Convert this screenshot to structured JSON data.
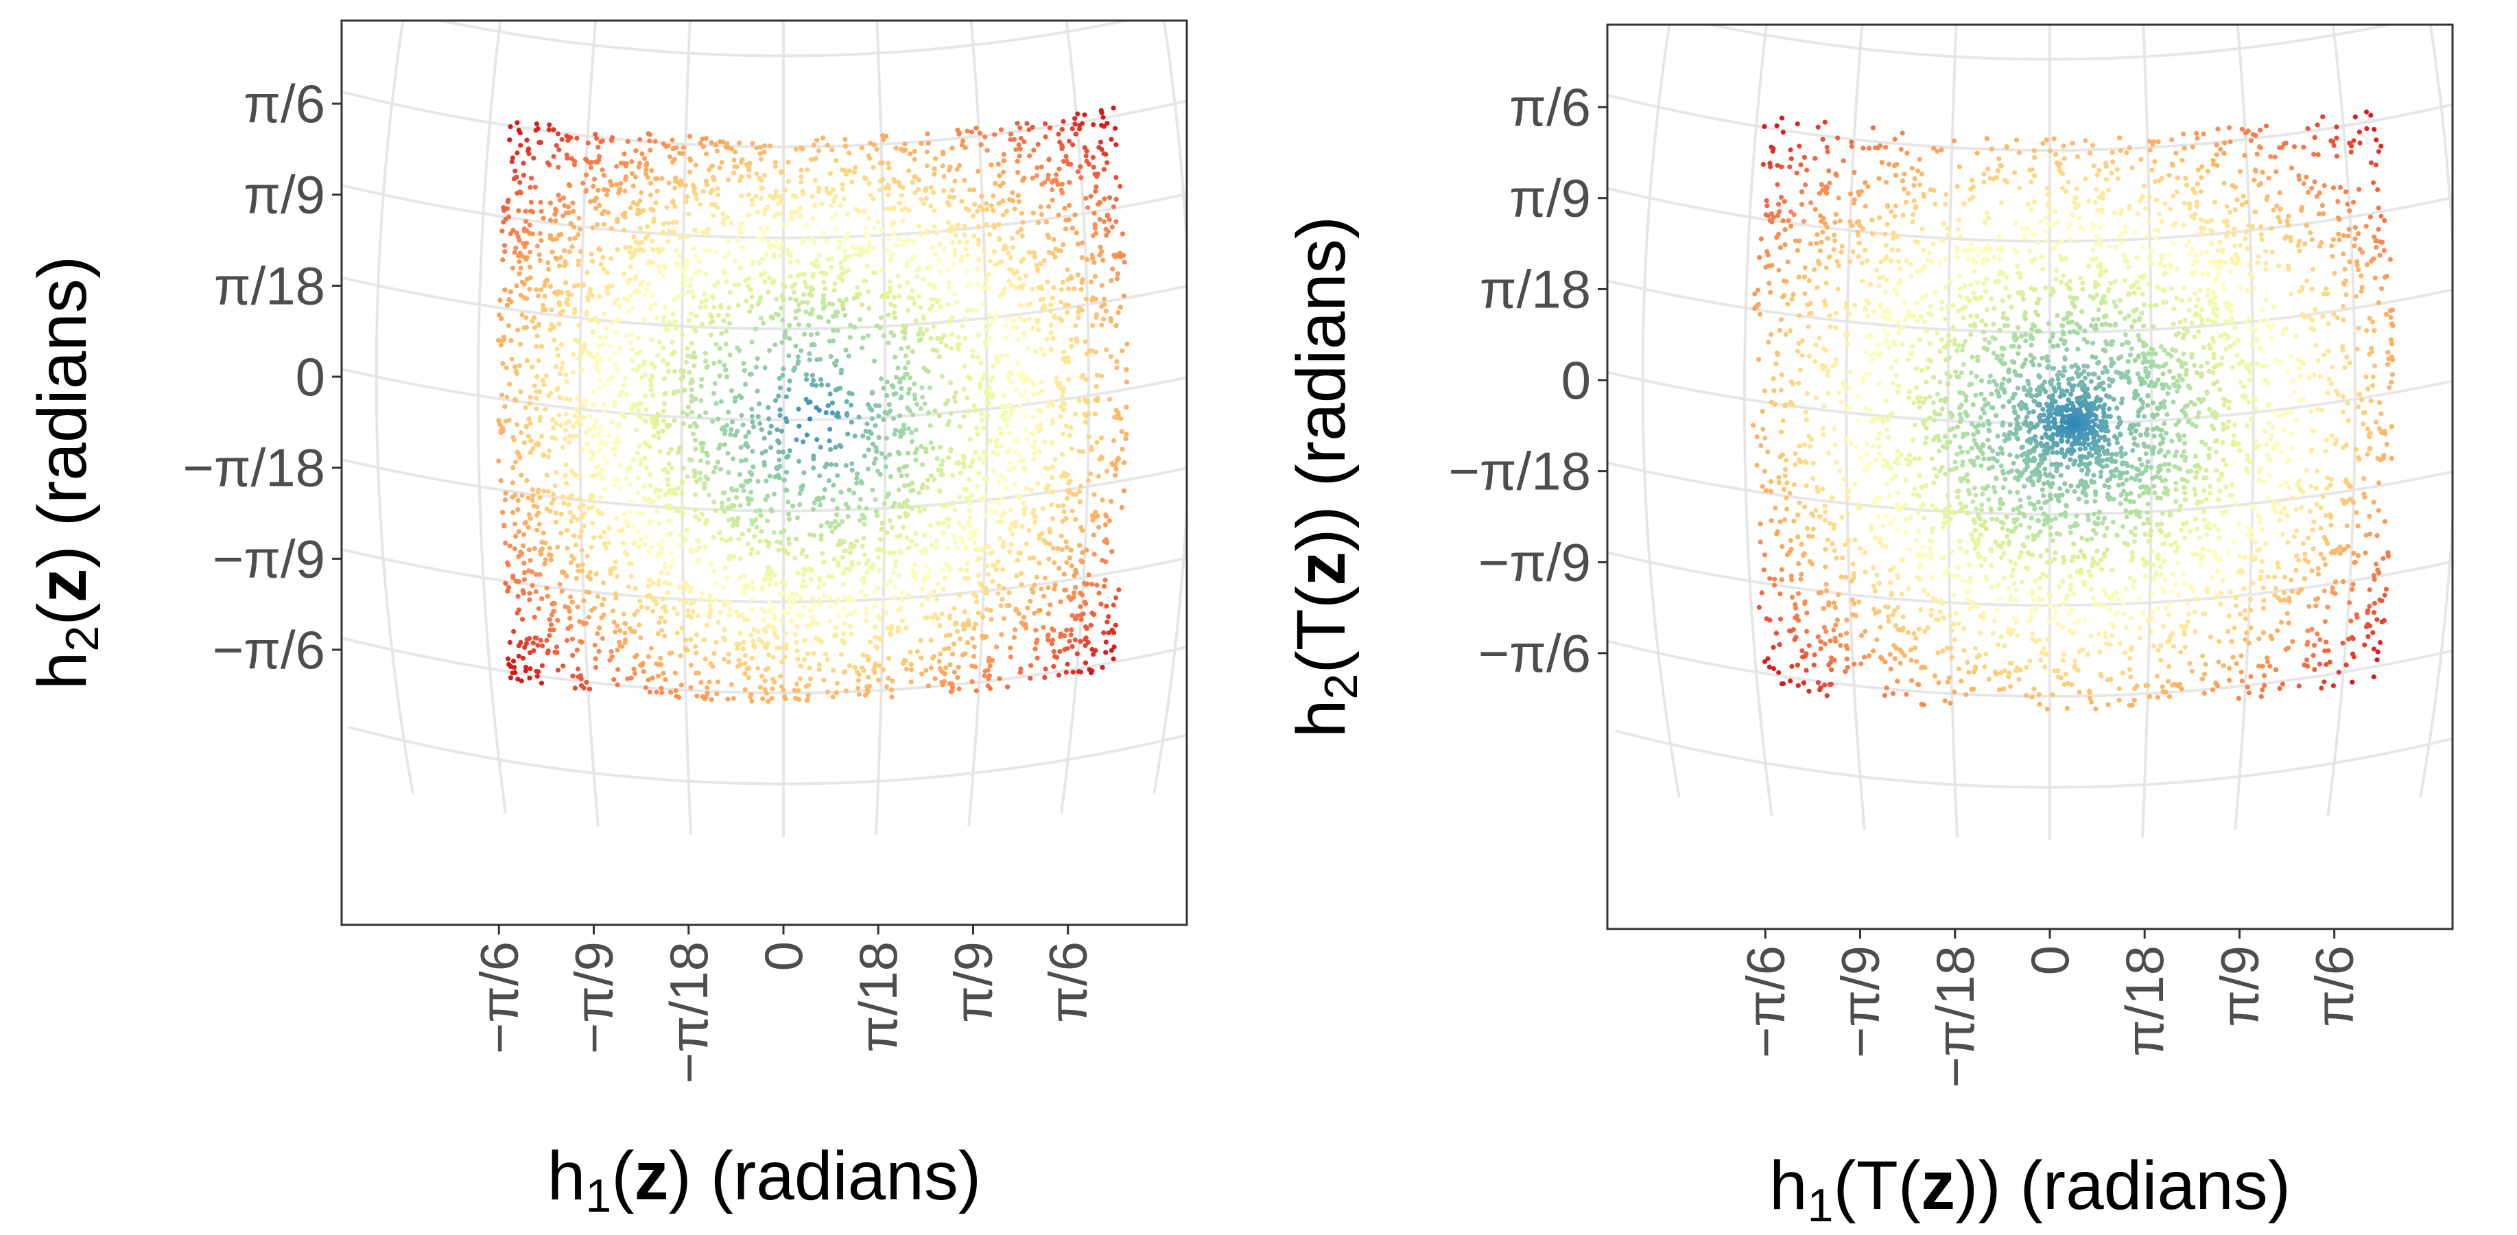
{
  "chart_data": [
    {
      "type": "scatter",
      "projection": "graticule curved (map-like)",
      "xlabel": {
        "prefix": "h",
        "sub": "1",
        "open": "(",
        "bold": "z",
        "close": ") (radians)"
      },
      "ylabel": {
        "prefix": "h",
        "sub": "2",
        "open": "(",
        "bold": "z",
        "close": ") (radians)"
      },
      "x_ticks": [
        {
          "value": -0.5236,
          "label": "−π/6"
        },
        {
          "value": -0.3491,
          "label": "−π/9"
        },
        {
          "value": -0.1745,
          "label": "−π/18"
        },
        {
          "value": 0,
          "label": "0"
        },
        {
          "value": 0.1745,
          "label": "π/18"
        },
        {
          "value": 0.3491,
          "label": "π/9"
        },
        {
          "value": 0.5236,
          "label": "π/6"
        }
      ],
      "y_ticks": [
        {
          "value": 0.5236,
          "label": "π/6"
        },
        {
          "value": 0.3491,
          "label": "π/9"
        },
        {
          "value": 0.1745,
          "label": "π/18"
        },
        {
          "value": 0,
          "label": "0"
        },
        {
          "value": -0.1745,
          "label": "−π/18"
        },
        {
          "value": -0.3491,
          "label": "−π/9"
        },
        {
          "value": -0.5236,
          "label": "−π/6"
        }
      ],
      "xlim": [
        -0.62,
        0.62
      ],
      "ylim": [
        -0.62,
        0.62
      ],
      "grid": true,
      "color_scale": "spectral (distance from center: blue center → red edge)",
      "points": {
        "distribution": "uniform square",
        "count": 4200,
        "center": [
          0.05,
          0.0
        ],
        "extent": 0.54,
        "concentration": 1.0
      }
    },
    {
      "type": "scatter",
      "projection": "graticule curved (map-like)",
      "xlabel": {
        "prefix": "h",
        "sub": "1",
        "open": "(T(",
        "bold": "z",
        "close": ")) (radians)"
      },
      "ylabel": {
        "prefix": "h",
        "sub": "2",
        "open": "(T(",
        "bold": "z",
        "close": ")) (radians)"
      },
      "x_ticks": [
        {
          "value": -0.5236,
          "label": "−π/6"
        },
        {
          "value": -0.3491,
          "label": "−π/9"
        },
        {
          "value": -0.1745,
          "label": "−π/18"
        },
        {
          "value": 0,
          "label": "0"
        },
        {
          "value": 0.1745,
          "label": "π/18"
        },
        {
          "value": 0.3491,
          "label": "π/9"
        },
        {
          "value": 0.5236,
          "label": "π/6"
        }
      ],
      "y_ticks": [
        {
          "value": 0.5236,
          "label": "π/6"
        },
        {
          "value": 0.3491,
          "label": "π/9"
        },
        {
          "value": 0.1745,
          "label": "π/18"
        },
        {
          "value": 0,
          "label": "0"
        },
        {
          "value": -0.1745,
          "label": "−π/18"
        },
        {
          "value": -0.3491,
          "label": "−π/9"
        },
        {
          "value": -0.5236,
          "label": "−π/6"
        }
      ],
      "xlim": [
        -0.62,
        0.62
      ],
      "ylim": [
        -0.62,
        0.62
      ],
      "grid": true,
      "color_scale": "spectral (distance from center: blue center → red edge)",
      "points": {
        "distribution": "square, concentrated toward center",
        "count": 4200,
        "center": [
          0.04,
          0.0
        ],
        "extent": 0.55,
        "concentration": 1.8
      }
    }
  ],
  "colors": {
    "grid": "#e6e6e6",
    "frame": "#333333",
    "tick_text": "#4d4d4d",
    "palette": [
      "#2b83ba",
      "#80bfab",
      "#abdda4",
      "#e6f598",
      "#ffffbf",
      "#fee08b",
      "#fdae61",
      "#f46d43",
      "#d7191c"
    ]
  }
}
